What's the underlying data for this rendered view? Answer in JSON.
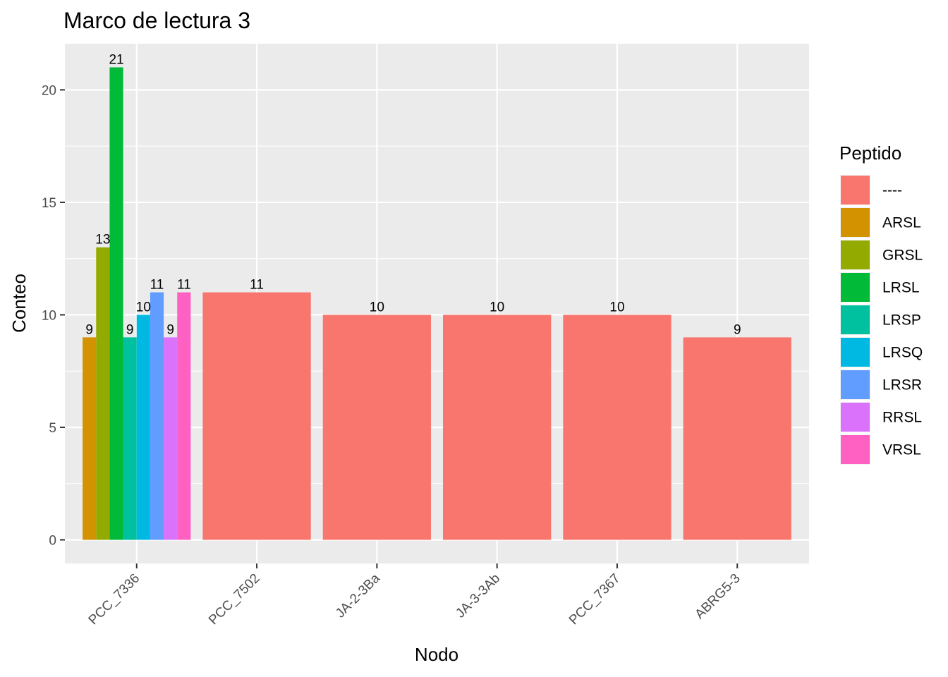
{
  "chart_data": {
    "type": "bar",
    "title": "Marco de lectura 3",
    "xlabel": "Nodo",
    "ylabel": "Conteo",
    "ylim": [
      -1.05,
      22.05
    ],
    "yticks": [
      0,
      5,
      10,
      15,
      20
    ],
    "grid": true,
    "legend_position": "right",
    "categories": [
      "PCC_7336",
      "PCC_7502",
      "JA-2-3Ba",
      "JA-3-3Ab",
      "PCC_7367",
      "ABRG5-3"
    ],
    "legend": {
      "title": "Peptido",
      "items": [
        {
          "label": "----",
          "color": "#F8766D"
        },
        {
          "label": "ARSL",
          "color": "#D39200"
        },
        {
          "label": "GRSL",
          "color": "#93AA00"
        },
        {
          "label": "LRSL",
          "color": "#00BA38"
        },
        {
          "label": "LRSP",
          "color": "#00C19F"
        },
        {
          "label": "LRSQ",
          "color": "#00B9E3"
        },
        {
          "label": "LRSR",
          "color": "#619CFF"
        },
        {
          "label": "RRSL",
          "color": "#DB72FB"
        },
        {
          "label": "VRSL",
          "color": "#FF61C3"
        }
      ]
    },
    "bars": [
      {
        "category": "PCC_7336",
        "peptide": "ARSL",
        "value": 9,
        "label": "9"
      },
      {
        "category": "PCC_7336",
        "peptide": "GRSL",
        "value": 13,
        "label": "13"
      },
      {
        "category": "PCC_7336",
        "peptide": "LRSL",
        "value": 21,
        "label": "21"
      },
      {
        "category": "PCC_7336",
        "peptide": "LRSP",
        "value": 9,
        "label": "9"
      },
      {
        "category": "PCC_7336",
        "peptide": "LRSQ",
        "value": 10,
        "label": "10"
      },
      {
        "category": "PCC_7336",
        "peptide": "LRSR",
        "value": 11,
        "label": "11"
      },
      {
        "category": "PCC_7336",
        "peptide": "RRSL",
        "value": 9,
        "label": "9"
      },
      {
        "category": "PCC_7336",
        "peptide": "VRSL",
        "value": 11,
        "label": "11"
      },
      {
        "category": "PCC_7502",
        "peptide": "----",
        "value": 11,
        "label": "11"
      },
      {
        "category": "JA-2-3Ba",
        "peptide": "----",
        "value": 10,
        "label": "10"
      },
      {
        "category": "JA-3-3Ab",
        "peptide": "----",
        "value": 10,
        "label": "10"
      },
      {
        "category": "PCC_7367",
        "peptide": "----",
        "value": 10,
        "label": "10"
      },
      {
        "category": "ABRG5-3",
        "peptide": "----",
        "value": 9,
        "label": "9"
      }
    ]
  }
}
